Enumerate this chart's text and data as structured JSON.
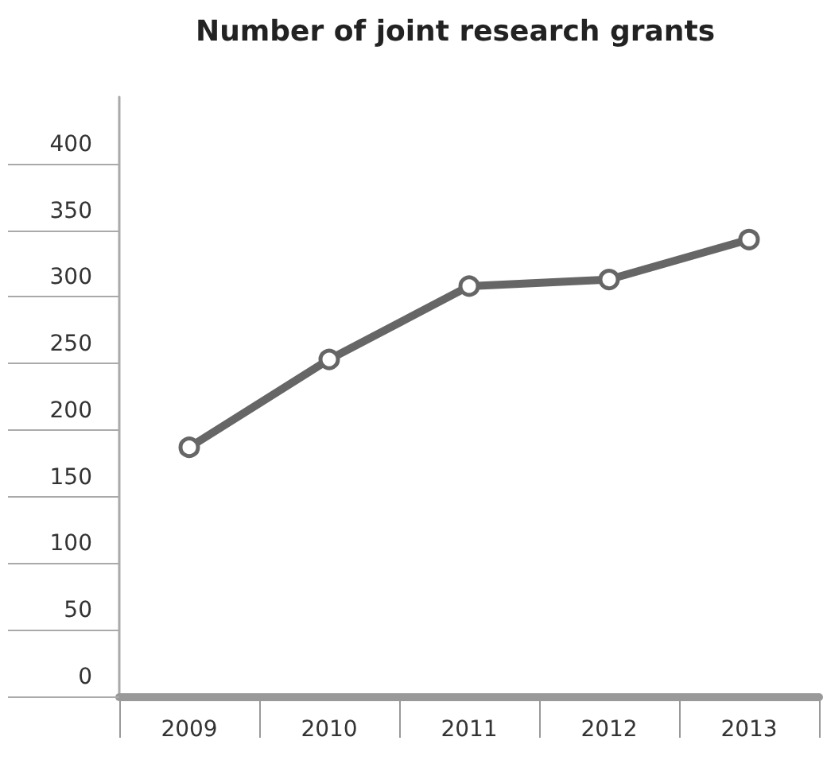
{
  "chart_data": {
    "type": "line",
    "title": "Number of joint research grants",
    "categories": [
      "2009",
      "2010",
      "2011",
      "2012",
      "2013"
    ],
    "series": [
      {
        "color": "#666666",
        "values": [
          187,
          253,
          308,
          313,
          343
        ]
      }
    ],
    "ylim": [
      0,
      450
    ],
    "yticks": [
      0,
      50,
      100,
      150,
      200,
      250,
      300,
      350,
      400
    ],
    "grid": false,
    "marker": "circle",
    "line_style": "solid"
  }
}
